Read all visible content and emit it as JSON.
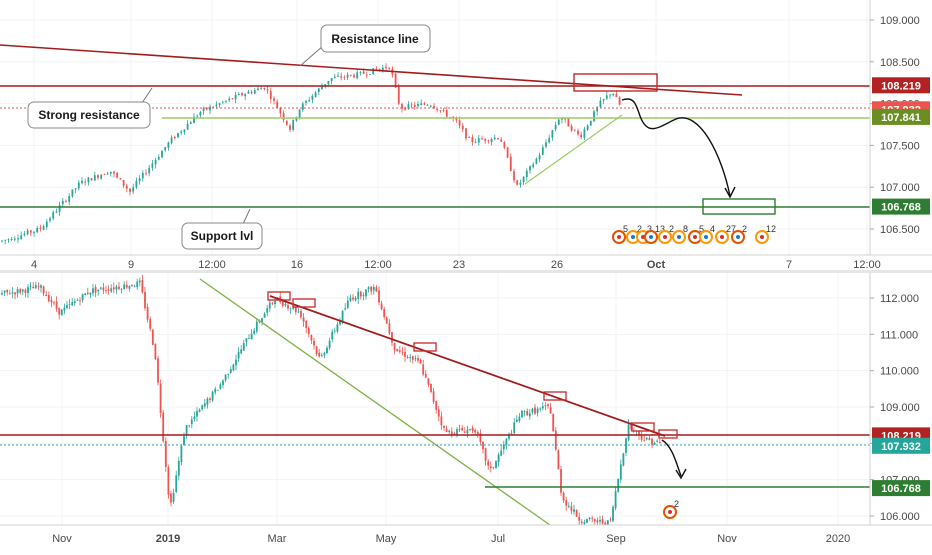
{
  "chart_data": [
    {
      "type": "candlestick",
      "panel": "top",
      "ylim": [
        106.3,
        109.2
      ],
      "y_ticks": [
        "109.000",
        "108.500",
        "108.000",
        "107.500",
        "107.000",
        "106.500"
      ],
      "y_tick_values": [
        109.0,
        108.5,
        108.0,
        107.5,
        107.0,
        106.5
      ],
      "x_ticks": [
        "4",
        "9",
        "12:00",
        "16",
        "12:00",
        "23",
        "26",
        "Oct",
        "7",
        "12:00"
      ],
      "price_levels": [
        {
          "label": "108.219",
          "value": 108.219,
          "color": "#b22222"
        },
        {
          "label": "107.932",
          "value": 107.932,
          "color": "#ef5350"
        },
        {
          "label": "107.841",
          "value": 107.841,
          "color": "#6b8e23"
        },
        {
          "label": "106.768",
          "value": 106.768,
          "color": "#2e7d32"
        }
      ],
      "annotations": [
        "Resistance line",
        "Strong resistance",
        "Support lvl"
      ],
      "event_labels": [
        "5",
        "2",
        "3",
        "13",
        "2",
        "8",
        "5",
        "4",
        "27",
        "2",
        "12"
      ],
      "colors": {
        "up": "#26a69a",
        "down": "#ef5350",
        "resistance": "#a31c1c",
        "support": "#2e7d32",
        "trend": "#7cb342"
      }
    },
    {
      "type": "candlestick",
      "panel": "bottom",
      "ylim": [
        105.7,
        112.6
      ],
      "y_ticks": [
        "112.000",
        "111.000",
        "110.000",
        "109.000",
        "108.000",
        "107.000",
        "106.000"
      ],
      "y_tick_values": [
        112.0,
        111.0,
        110.0,
        109.0,
        108.0,
        107.0,
        106.0
      ],
      "x_ticks": [
        "Nov",
        "2019",
        "Mar",
        "May",
        "Jul",
        "Sep",
        "Nov",
        "2020"
      ],
      "price_levels": [
        {
          "label": "108.219",
          "value": 108.219,
          "color": "#b22222"
        },
        {
          "label": "107.932",
          "value": 107.932,
          "color": "#26a69a"
        },
        {
          "label": "106.768",
          "value": 106.768,
          "color": "#2e7d32"
        }
      ],
      "event_labels": [
        "2"
      ],
      "colors": {
        "up": "#26a69a",
        "down": "#ef5350",
        "resistance": "#a31c1c",
        "support": "#2e7d32",
        "trend": "#7cb342"
      }
    }
  ]
}
